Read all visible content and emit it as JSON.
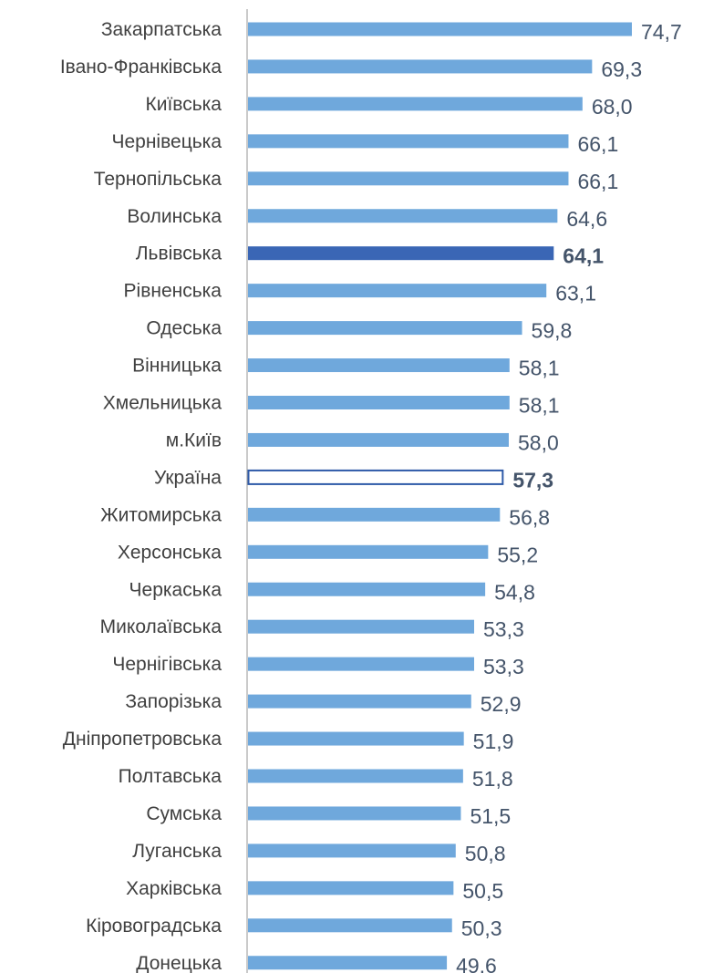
{
  "chart_data": {
    "type": "bar",
    "orientation": "horizontal",
    "categories": [
      "Закарпатська",
      "Івано-Франківська",
      "Київська",
      "Чернівецька",
      "Тернопільська",
      "Волинська",
      "Львівська",
      "Рівненська",
      "Одеська",
      "Вінницька",
      "Хмельницька",
      "м.Київ",
      "Україна",
      "Житомирська",
      "Херсонська",
      "Черкаська",
      "Миколаївська",
      "Чернігівська",
      "Запорізька",
      "Дніпропетровська",
      "Полтавська",
      "Сумська",
      "Луганська",
      "Харківська",
      "Кіровоградська",
      "Донецька"
    ],
    "values": [
      74.7,
      69.3,
      68.0,
      66.1,
      66.1,
      64.6,
      64.1,
      63.1,
      59.8,
      58.1,
      58.1,
      58.0,
      57.3,
      56.8,
      55.2,
      54.8,
      53.3,
      53.3,
      52.9,
      51.9,
      51.8,
      51.5,
      50.8,
      50.5,
      50.3,
      49.6
    ],
    "value_labels": [
      "74,7",
      "69,3",
      "68,0",
      "66,1",
      "66,1",
      "64,6",
      "64,1",
      "63,1",
      "59,8",
      "58,1",
      "58,1",
      "58,0",
      "57,3",
      "56,8",
      "55,2",
      "54,8",
      "53,3",
      "53,3",
      "52,9",
      "51,9",
      "51,8",
      "51,5",
      "50,8",
      "50,5",
      "50,3",
      "49,6"
    ],
    "highlight": {
      "Львівська": "filled-dark",
      "Україна": "outline"
    },
    "xlim": [
      22.5,
      74.7
    ],
    "grid": false,
    "legend": "none",
    "colors": {
      "bar": "#6fa8dc",
      "highlight": "#3a66b5",
      "outline": "#2e5aa8",
      "axis": "#a6a6a6",
      "label": "#404040",
      "value": "#44546a"
    }
  }
}
